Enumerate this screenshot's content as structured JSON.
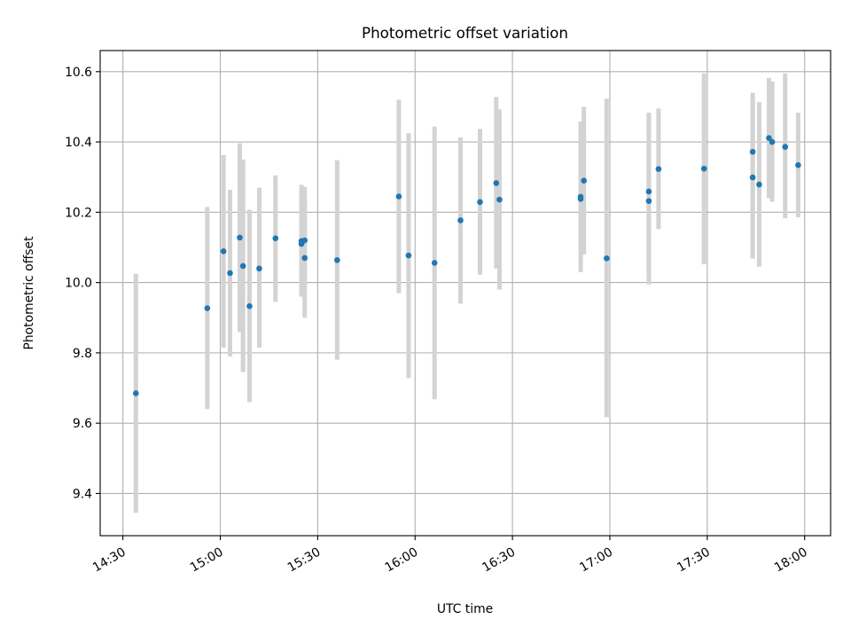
{
  "chart_data": {
    "type": "scatter",
    "title": "Photometric offset variation",
    "xlabel": "UTC time",
    "ylabel": "Photometric offset",
    "x_axis_kind": "time (HH:MM, UTC)",
    "x_ticks": [
      "14:30",
      "15:00",
      "15:30",
      "16:00",
      "16:30",
      "17:00",
      "17:30",
      "18:00"
    ],
    "y_ticks": [
      "9.4",
      "9.6",
      "9.8",
      "10.0",
      "10.2",
      "10.4",
      "10.6"
    ],
    "xlim": [
      "14:23",
      "18:08"
    ],
    "ylim": [
      9.28,
      10.66
    ],
    "grid": true,
    "point_color": "#1f77b4",
    "errorbar_color": "#d3d3d3",
    "points": [
      {
        "x": "14:34",
        "y": 9.685,
        "yerr_low": 9.345,
        "yerr_high": 10.025
      },
      {
        "x": "14:56",
        "y": 9.927,
        "yerr_low": 9.64,
        "yerr_high": 10.215
      },
      {
        "x": "15:01",
        "y": 10.089,
        "yerr_low": 9.815,
        "yerr_high": 10.363
      },
      {
        "x": "15:03",
        "y": 10.027,
        "yerr_low": 9.79,
        "yerr_high": 10.264
      },
      {
        "x": "15:06",
        "y": 10.128,
        "yerr_low": 9.86,
        "yerr_high": 10.396
      },
      {
        "x": "15:07",
        "y": 10.047,
        "yerr_low": 9.745,
        "yerr_high": 10.35
      },
      {
        "x": "15:09",
        "y": 9.933,
        "yerr_low": 9.66,
        "yerr_high": 10.207
      },
      {
        "x": "15:12",
        "y": 10.04,
        "yerr_low": 9.815,
        "yerr_high": 10.27
      },
      {
        "x": "15:17",
        "y": 10.126,
        "yerr_low": 9.945,
        "yerr_high": 10.305
      },
      {
        "x": "15:25",
        "y": 10.118,
        "yerr_low": 9.96,
        "yerr_high": 10.278
      },
      {
        "x": "15:25",
        "y": 10.11,
        "yerr_low": 9.965,
        "yerr_high": 10.255
      },
      {
        "x": "15:26",
        "y": 10.12,
        "yerr_low": 9.97,
        "yerr_high": 10.272
      },
      {
        "x": "15:26",
        "y": 10.07,
        "yerr_low": 9.9,
        "yerr_high": 10.245
      },
      {
        "x": "15:36",
        "y": 10.064,
        "yerr_low": 9.78,
        "yerr_high": 10.348
      },
      {
        "x": "15:55",
        "y": 10.245,
        "yerr_low": 9.97,
        "yerr_high": 10.52
      },
      {
        "x": "15:58",
        "y": 10.077,
        "yerr_low": 9.728,
        "yerr_high": 10.425
      },
      {
        "x": "16:06",
        "y": 10.056,
        "yerr_low": 9.668,
        "yerr_high": 10.444
      },
      {
        "x": "16:14",
        "y": 10.177,
        "yerr_low": 9.94,
        "yerr_high": 10.413
      },
      {
        "x": "16:20",
        "y": 10.229,
        "yerr_low": 10.022,
        "yerr_high": 10.437
      },
      {
        "x": "16:25",
        "y": 10.283,
        "yerr_low": 10.04,
        "yerr_high": 10.528
      },
      {
        "x": "16:26",
        "y": 10.236,
        "yerr_low": 9.98,
        "yerr_high": 10.493
      },
      {
        "x": "16:51",
        "y": 10.238,
        "yerr_low": 10.035,
        "yerr_high": 10.44
      },
      {
        "x": "16:51",
        "y": 10.244,
        "yerr_low": 10.03,
        "yerr_high": 10.458
      },
      {
        "x": "16:52",
        "y": 10.29,
        "yerr_low": 10.08,
        "yerr_high": 10.5
      },
      {
        "x": "16:59",
        "y": 10.069,
        "yerr_low": 9.617,
        "yerr_high": 10.523
      },
      {
        "x": "17:12",
        "y": 10.232,
        "yerr_low": 9.995,
        "yerr_high": 10.472
      },
      {
        "x": "17:12",
        "y": 10.259,
        "yerr_low": 10.035,
        "yerr_high": 10.483
      },
      {
        "x": "17:15",
        "y": 10.323,
        "yerr_low": 10.152,
        "yerr_high": 10.495
      },
      {
        "x": "17:29",
        "y": 10.324,
        "yerr_low": 10.052,
        "yerr_high": 10.595
      },
      {
        "x": "17:44",
        "y": 10.372,
        "yerr_low": 10.205,
        "yerr_high": 10.54
      },
      {
        "x": "17:44",
        "y": 10.299,
        "yerr_low": 10.068,
        "yerr_high": 10.53
      },
      {
        "x": "17:46",
        "y": 10.279,
        "yerr_low": 10.045,
        "yerr_high": 10.513
      },
      {
        "x": "17:49",
        "y": 10.411,
        "yerr_low": 10.24,
        "yerr_high": 10.582
      },
      {
        "x": "17:50",
        "y": 10.4,
        "yerr_low": 10.23,
        "yerr_high": 10.572
      },
      {
        "x": "17:54",
        "y": 10.386,
        "yerr_low": 10.183,
        "yerr_high": 10.595
      },
      {
        "x": "17:58",
        "y": 10.334,
        "yerr_low": 10.186,
        "yerr_high": 10.483
      }
    ]
  }
}
